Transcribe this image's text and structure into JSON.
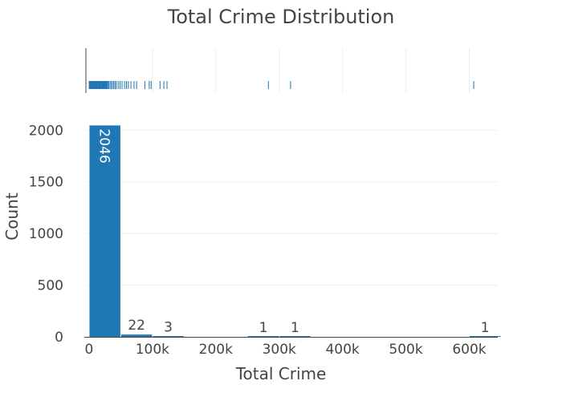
{
  "chart_data": {
    "type": "bar",
    "title": "Total Crime Distribution",
    "xlabel": "Total Crime",
    "ylabel": "Count",
    "x_range": [
      -5000,
      645000
    ],
    "y_range": [
      0,
      2150
    ],
    "x_ticks": [
      0,
      100000,
      200000,
      300000,
      400000,
      500000,
      600000
    ],
    "x_tick_labels": [
      "0",
      "100k",
      "200k",
      "300k",
      "400k",
      "500k",
      "600k"
    ],
    "y_ticks": [
      0,
      500,
      1000,
      1500,
      2000
    ],
    "y_tick_labels": [
      "0",
      "500",
      "1000",
      "1500",
      "2000"
    ],
    "grid": true,
    "bar_color": "#1f77b4",
    "bins": [
      {
        "x0": 0,
        "x1": 50000,
        "count": 2046,
        "label": "2046"
      },
      {
        "x0": 50000,
        "x1": 100000,
        "count": 22,
        "label": "22"
      },
      {
        "x0": 100000,
        "x1": 150000,
        "count": 3,
        "label": "3"
      },
      {
        "x0": 150000,
        "x1": 200000,
        "count": 0,
        "label": ""
      },
      {
        "x0": 200000,
        "x1": 250000,
        "count": 0,
        "label": ""
      },
      {
        "x0": 250000,
        "x1": 300000,
        "count": 1,
        "label": "1"
      },
      {
        "x0": 300000,
        "x1": 350000,
        "count": 1,
        "label": "1"
      },
      {
        "x0": 350000,
        "x1": 400000,
        "count": 0,
        "label": ""
      },
      {
        "x0": 400000,
        "x1": 450000,
        "count": 0,
        "label": ""
      },
      {
        "x0": 450000,
        "x1": 500000,
        "count": 0,
        "label": ""
      },
      {
        "x0": 500000,
        "x1": 550000,
        "count": 0,
        "label": ""
      },
      {
        "x0": 550000,
        "x1": 600000,
        "count": 0,
        "label": ""
      },
      {
        "x0": 600000,
        "x1": 650000,
        "count": 1,
        "label": "1"
      }
    ],
    "rug_values": [
      200,
      800,
      1500,
      2500,
      3500,
      4500,
      5500,
      6500,
      7500,
      8500,
      9500,
      10500,
      11500,
      12500,
      13500,
      14500,
      15500,
      16500,
      17500,
      18500,
      19500,
      20500,
      21500,
      22500,
      23500,
      24500,
      25500,
      26500,
      27500,
      28500,
      29500,
      31000,
      33000,
      35000,
      37000,
      39000,
      41000,
      43000,
      46000,
      49000,
      52000,
      56000,
      59000,
      62000,
      66000,
      71000,
      75000,
      88000,
      95000,
      98000,
      112000,
      118000,
      123000,
      283000,
      318000,
      607000
    ]
  }
}
